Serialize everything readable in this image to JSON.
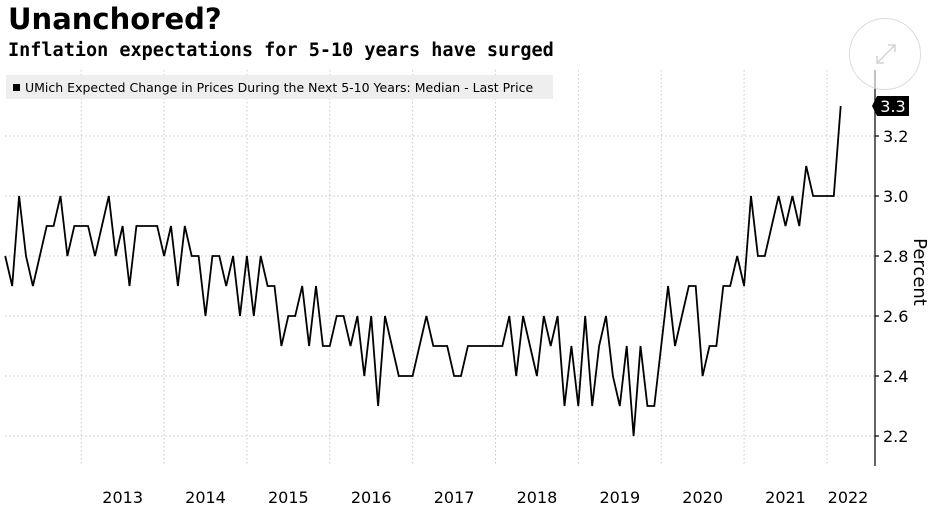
{
  "header": {
    "title": "Unanchored?",
    "subtitle": "Inflation expectations for 5-10 years have surged"
  },
  "legend": {
    "label": "UMich Expected Change in Prices During the Next 5-10 Years: Median - Last Price"
  },
  "last_price_badge": "3.3",
  "controls": {
    "expand_icon": "expand-arrows-icon"
  },
  "colors": {
    "line": "#000000",
    "grid": "#c8c8c8",
    "legend_bg": "#eeeeee",
    "badge_bg": "#000000",
    "badge_text": "#ffffff"
  },
  "chart_data": {
    "type": "line",
    "title": "Unanchored?",
    "subtitle": "Inflation expectations for 5-10 years have surged",
    "xlabel": "",
    "ylabel": "Percent",
    "xlim": [
      2012.08,
      2022.58
    ],
    "ylim": [
      2.1,
      3.42
    ],
    "y_ticks": [
      2.2,
      2.4,
      2.6,
      2.8,
      3.0,
      3.2
    ],
    "y_tick_labels": [
      "2.2",
      "2.4",
      "2.6",
      "2.8",
      "3.0",
      "3.2"
    ],
    "x_year_starts": [
      2013,
      2014,
      2015,
      2016,
      2017,
      2018,
      2019,
      2020,
      2021,
      2022
    ],
    "x_tick_labels": [
      "2013",
      "2014",
      "2015",
      "2016",
      "2017",
      "2018",
      "2019",
      "2020",
      "2021",
      "2022"
    ],
    "legend": "UMich Expected Change in Prices During the Next 5-10 Years: Median - Last Price",
    "last_value": 3.3,
    "grid": true,
    "series": [
      {
        "name": "UMich Expected Change in Prices During the Next 5-10 Years: Median - Last Price",
        "start": 2012.083,
        "step": 0.0833333,
        "values": [
          2.8,
          2.7,
          3.0,
          2.8,
          2.7,
          2.8,
          2.9,
          2.9,
          3.0,
          2.8,
          2.9,
          2.9,
          2.9,
          2.8,
          2.9,
          3.0,
          2.8,
          2.9,
          2.7,
          2.9,
          2.9,
          2.9,
          2.9,
          2.8,
          2.9,
          2.7,
          2.9,
          2.8,
          2.8,
          2.6,
          2.8,
          2.8,
          2.7,
          2.8,
          2.6,
          2.8,
          2.6,
          2.8,
          2.7,
          2.7,
          2.5,
          2.6,
          2.6,
          2.7,
          2.5,
          2.7,
          2.5,
          2.5,
          2.6,
          2.6,
          2.5,
          2.6,
          2.4,
          2.6,
          2.3,
          2.6,
          2.5,
          2.4,
          2.4,
          2.4,
          2.5,
          2.6,
          2.5,
          2.5,
          2.5,
          2.4,
          2.4,
          2.5,
          2.5,
          2.5,
          2.5,
          2.5,
          2.5,
          2.6,
          2.4,
          2.6,
          2.5,
          2.4,
          2.6,
          2.5,
          2.6,
          2.3,
          2.5,
          2.3,
          2.6,
          2.3,
          2.5,
          2.6,
          2.4,
          2.3,
          2.5,
          2.2,
          2.5,
          2.3,
          2.3,
          2.5,
          2.7,
          2.5,
          2.6,
          2.7,
          2.7,
          2.4,
          2.5,
          2.5,
          2.7,
          2.7,
          2.8,
          2.7,
          3.0,
          2.8,
          2.8,
          2.9,
          3.0,
          2.9,
          3.0,
          2.9,
          3.1,
          3.0,
          3.0,
          3.0,
          3.0,
          3.3
        ]
      }
    ]
  }
}
